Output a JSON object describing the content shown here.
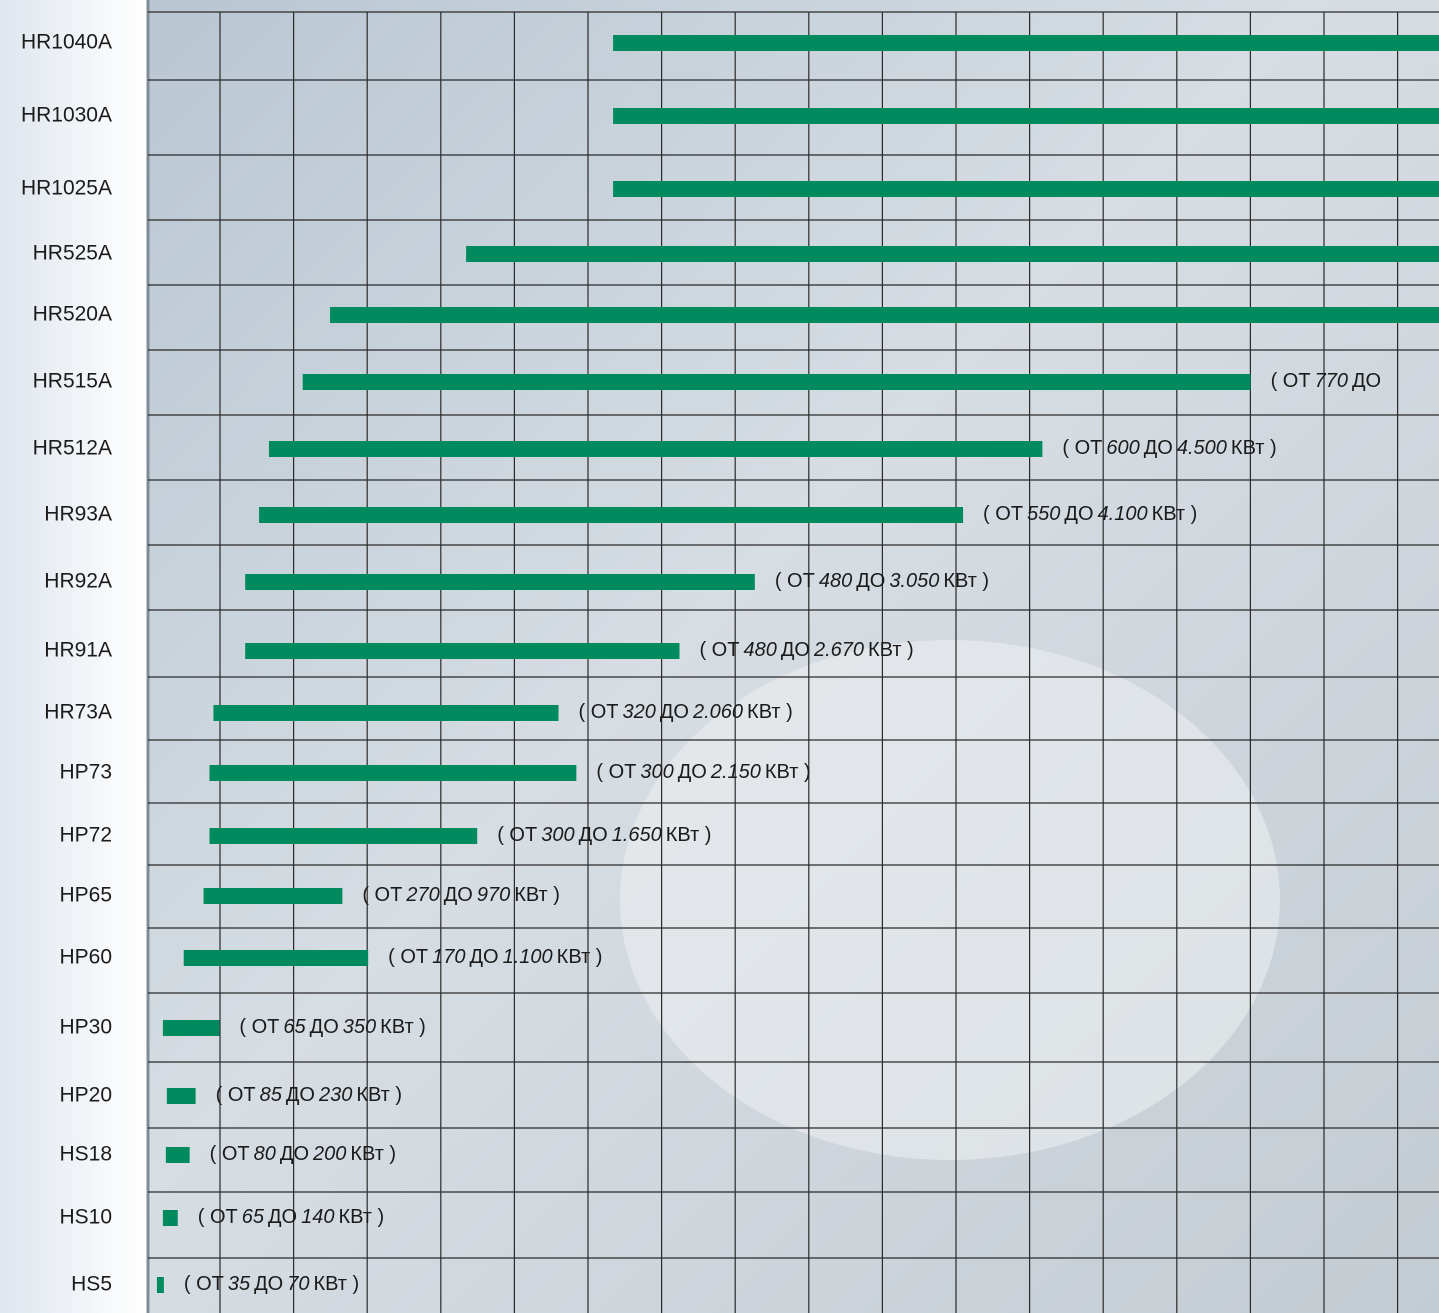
{
  "chart_data": {
    "type": "range_bar",
    "categories": [
      "HR1040A",
      "HR1030A",
      "HR1025A",
      "HR525A",
      "HR520A",
      "HR515A",
      "HR512A",
      "HR93A",
      "HR92A",
      "HR91A",
      "HR73A",
      "HP73",
      "HP72",
      "HP65",
      "HP60",
      "HP30",
      "HP20",
      "HS18",
      "HS10",
      "HS5"
    ],
    "from": [
      2335,
      2335,
      2335,
      1594,
      908,
      770,
      600,
      550,
      480,
      480,
      320,
      300,
      300,
      270,
      170,
      65,
      85,
      80,
      65,
      35
    ],
    "to": [
      null,
      null,
      null,
      null,
      null,
      5550,
      4500,
      4100,
      3050,
      2670,
      2060,
      2150,
      1650,
      970,
      1100,
      350,
      230,
      200,
      140,
      70
    ],
    "from_labels": [
      null,
      null,
      null,
      null,
      null,
      "770",
      "600",
      "550",
      "480",
      "480",
      "320",
      "300",
      "300",
      "270",
      "170",
      "65",
      "85",
      "80",
      "65",
      "35"
    ],
    "to_labels": [
      null,
      null,
      null,
      null,
      null,
      null,
      "4.500",
      "4.100",
      "3.050",
      "2.670",
      "2.060",
      "2.150",
      "1.650",
      "970",
      "1.100",
      "350",
      "230",
      "200",
      "140",
      "70"
    ],
    "label_prefix": "( ОТ",
    "label_mid": "ДО",
    "label_suffix": "КВт )",
    "color": "#008a5e",
    "xlim": [
      0,
      6500
    ]
  }
}
